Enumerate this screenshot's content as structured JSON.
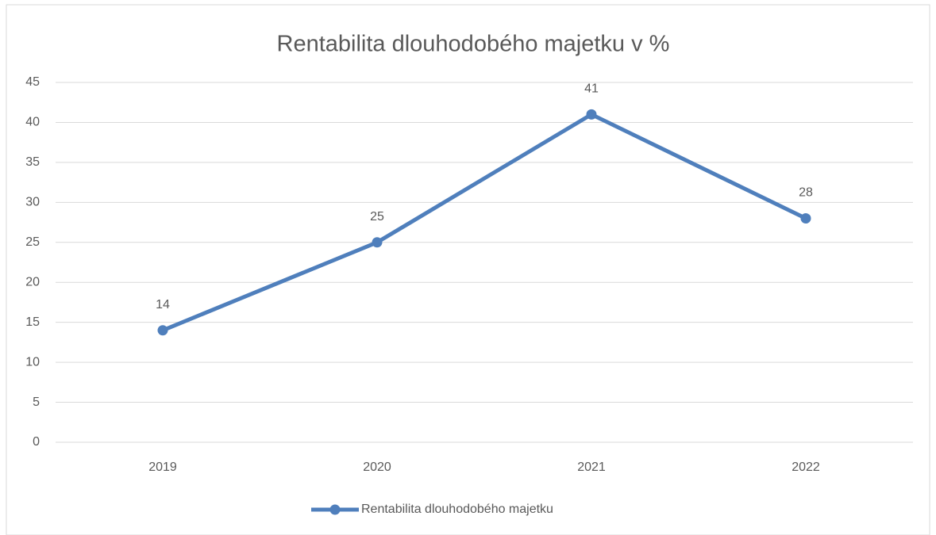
{
  "chart_data": {
    "type": "line",
    "title": "Rentabilita dlouhodobého majetku v %",
    "categories": [
      "2019",
      "2020",
      "2021",
      "2022"
    ],
    "series": [
      {
        "name": "Rentabilita dlouhodobého majetku",
        "color": "#4f7fbc",
        "values": [
          14,
          25,
          41,
          28
        ]
      }
    ],
    "ylim": [
      0,
      45
    ],
    "yticks": [
      0,
      5,
      10,
      15,
      20,
      25,
      30,
      35,
      40,
      45
    ],
    "grid": true,
    "legend": "bottom",
    "data_labels": true
  }
}
